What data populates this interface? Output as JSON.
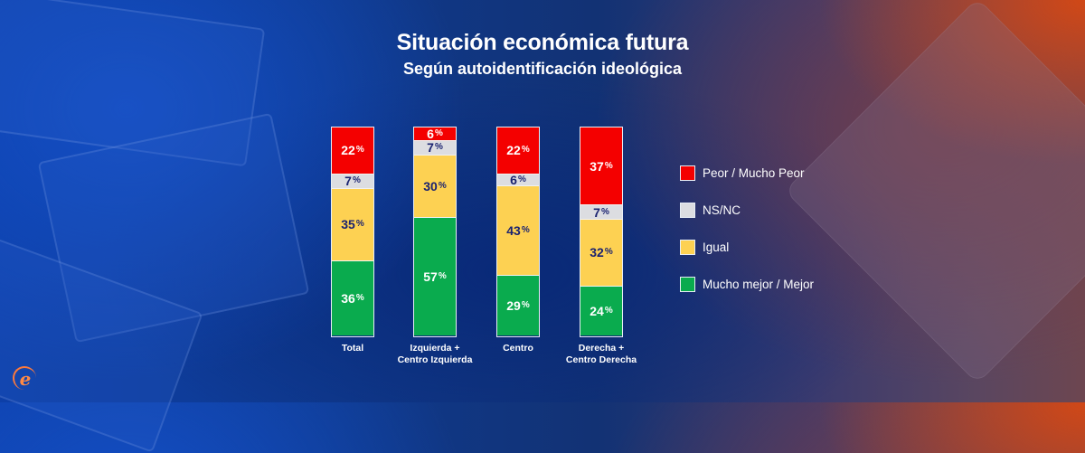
{
  "header": {
    "title": "Situación económica futura",
    "subtitle": "Según autoidentificación ideológica"
  },
  "logo": {
    "icon": "e-logo-icon",
    "glyph": "e"
  },
  "colors": {
    "peor": "#f40000",
    "nsnc": "#dcdde1",
    "igual": "#fdd152",
    "mejor": "#0aab4e",
    "label_dark": "#1a2270",
    "label_light": "#ffffff"
  },
  "chart_data": {
    "type": "bar",
    "stacked": true,
    "normalized": true,
    "title": "Situación económica futura",
    "subtitle": "Según autoidentificación ideológica",
    "xlabel": "",
    "ylabel": "",
    "ylim": [
      0,
      100
    ],
    "unit": "%",
    "grid": false,
    "legend_position": "right",
    "categories": [
      "Total",
      "Izquierda +\nCentro Izquierda",
      "Centro",
      "Derecha +\nCentro Derecha"
    ],
    "series": [
      {
        "key": "peor",
        "name": "Peor / Mucho Peor",
        "color": "#f40000",
        "label_color": "#ffffff",
        "values": [
          22,
          6,
          22,
          37
        ]
      },
      {
        "key": "nsnc",
        "name": "NS/NC",
        "color": "#dcdde1",
        "label_color": "#1a2270",
        "values": [
          7,
          7,
          6,
          7
        ]
      },
      {
        "key": "igual",
        "name": "Igual",
        "color": "#fdd152",
        "label_color": "#1a2270",
        "values": [
          35,
          30,
          43,
          32
        ]
      },
      {
        "key": "mejor",
        "name": "Mucho mejor / Mejor",
        "color": "#0aab4e",
        "label_color": "#ffffff",
        "values": [
          36,
          57,
          29,
          24
        ]
      }
    ]
  }
}
